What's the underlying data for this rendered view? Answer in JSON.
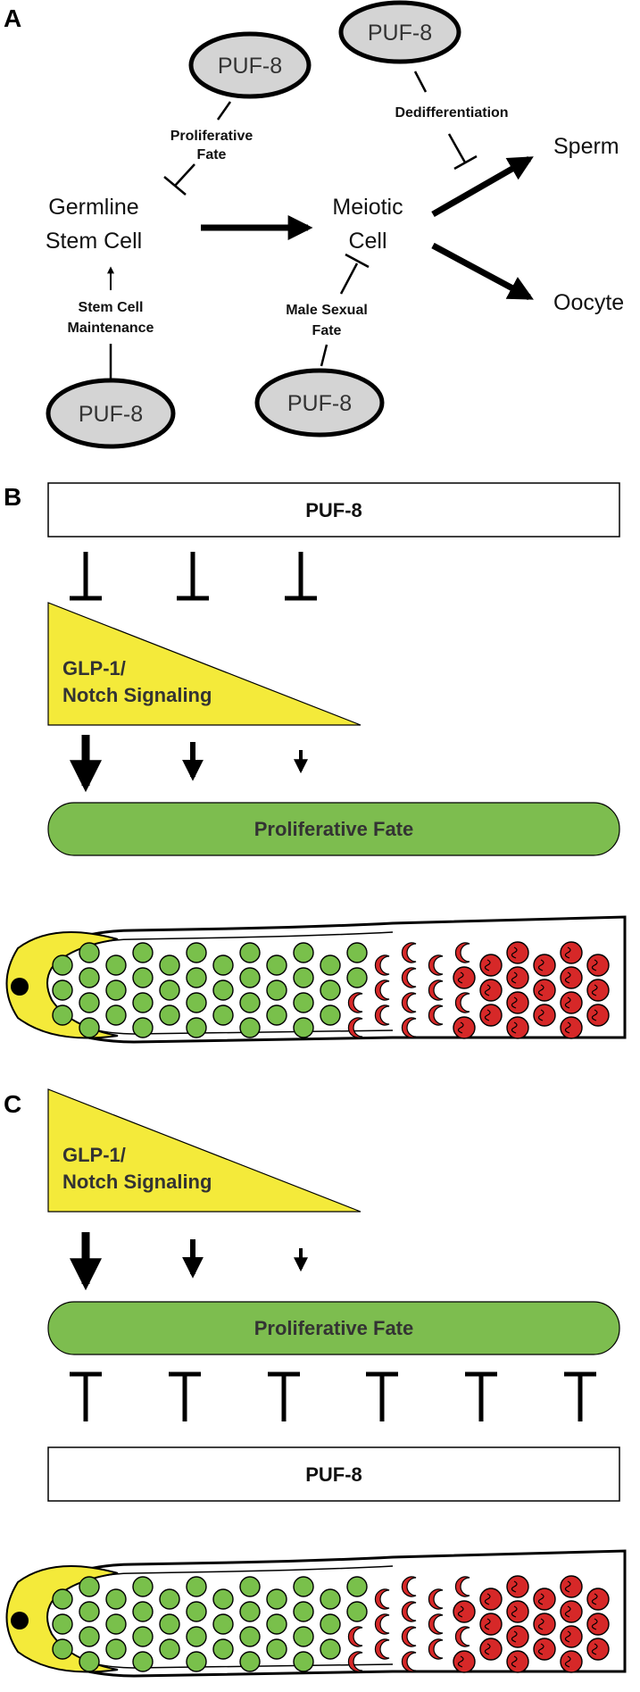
{
  "colors": {
    "oval_fill": "#d4d4d4",
    "notch_yellow": "#f4ea3a",
    "proliferative_green": "#7dbd4f",
    "cell_green": "#79c04b",
    "cell_red": "#d62828",
    "nucleus_black": "#000000"
  },
  "panel_a": {
    "letter": "A",
    "nodes": {
      "germline_line1": "Germline",
      "germline_line2": "Stem Cell",
      "meiotic_line1": "Meiotic",
      "meiotic_line2": "Cell",
      "sperm": "Sperm",
      "oocyte": "Oocyte"
    },
    "puf8_ovals": [
      "PUF-8",
      "PUF-8",
      "PUF-8",
      "PUF-8"
    ],
    "labels": {
      "proliferative_line1": "Proliferative",
      "proliferative_line2": "Fate",
      "dedifferentiation": "Dedifferentiation",
      "maintenance_line1": "Stem Cell",
      "maintenance_line2": "Maintenance",
      "male_line1": "Male Sexual",
      "male_line2": "Fate"
    }
  },
  "panel_b": {
    "letter": "B",
    "puf8_box": "PUF-8",
    "notch_line1": "GLP-1/",
    "notch_line2": "Notch Signaling",
    "proliferative_bar": "Proliferative Fate"
  },
  "panel_c": {
    "letter": "C",
    "notch_line1": "GLP-1/",
    "notch_line2": "Notch Signaling",
    "proliferative_bar": "Proliferative Fate",
    "puf8_box": "PUF-8"
  },
  "gonad": {
    "cell_columns": [
      {
        "type": "green",
        "count": 3
      },
      {
        "type": "green",
        "count": 4
      },
      {
        "type": "green",
        "count": 3
      },
      {
        "type": "green",
        "count": 4
      },
      {
        "type": "green",
        "count": 3
      },
      {
        "type": "green",
        "count": 4
      },
      {
        "type": "green",
        "count": 3
      },
      {
        "type": "green",
        "count": 4
      },
      {
        "type": "green",
        "count": 3
      },
      {
        "type": "green",
        "count": 4
      },
      {
        "type": "green",
        "count": 3
      },
      {
        "type": "mixed",
        "count": 4
      },
      {
        "type": "crescent",
        "count": 3
      },
      {
        "type": "crescent",
        "count": 4
      },
      {
        "type": "crescent",
        "count": 3
      },
      {
        "type": "mixed_late",
        "count": 4
      },
      {
        "type": "late",
        "count": 3
      },
      {
        "type": "late",
        "count": 4
      },
      {
        "type": "late",
        "count": 3
      },
      {
        "type": "late",
        "count": 4
      },
      {
        "type": "late",
        "count": 3
      }
    ]
  }
}
